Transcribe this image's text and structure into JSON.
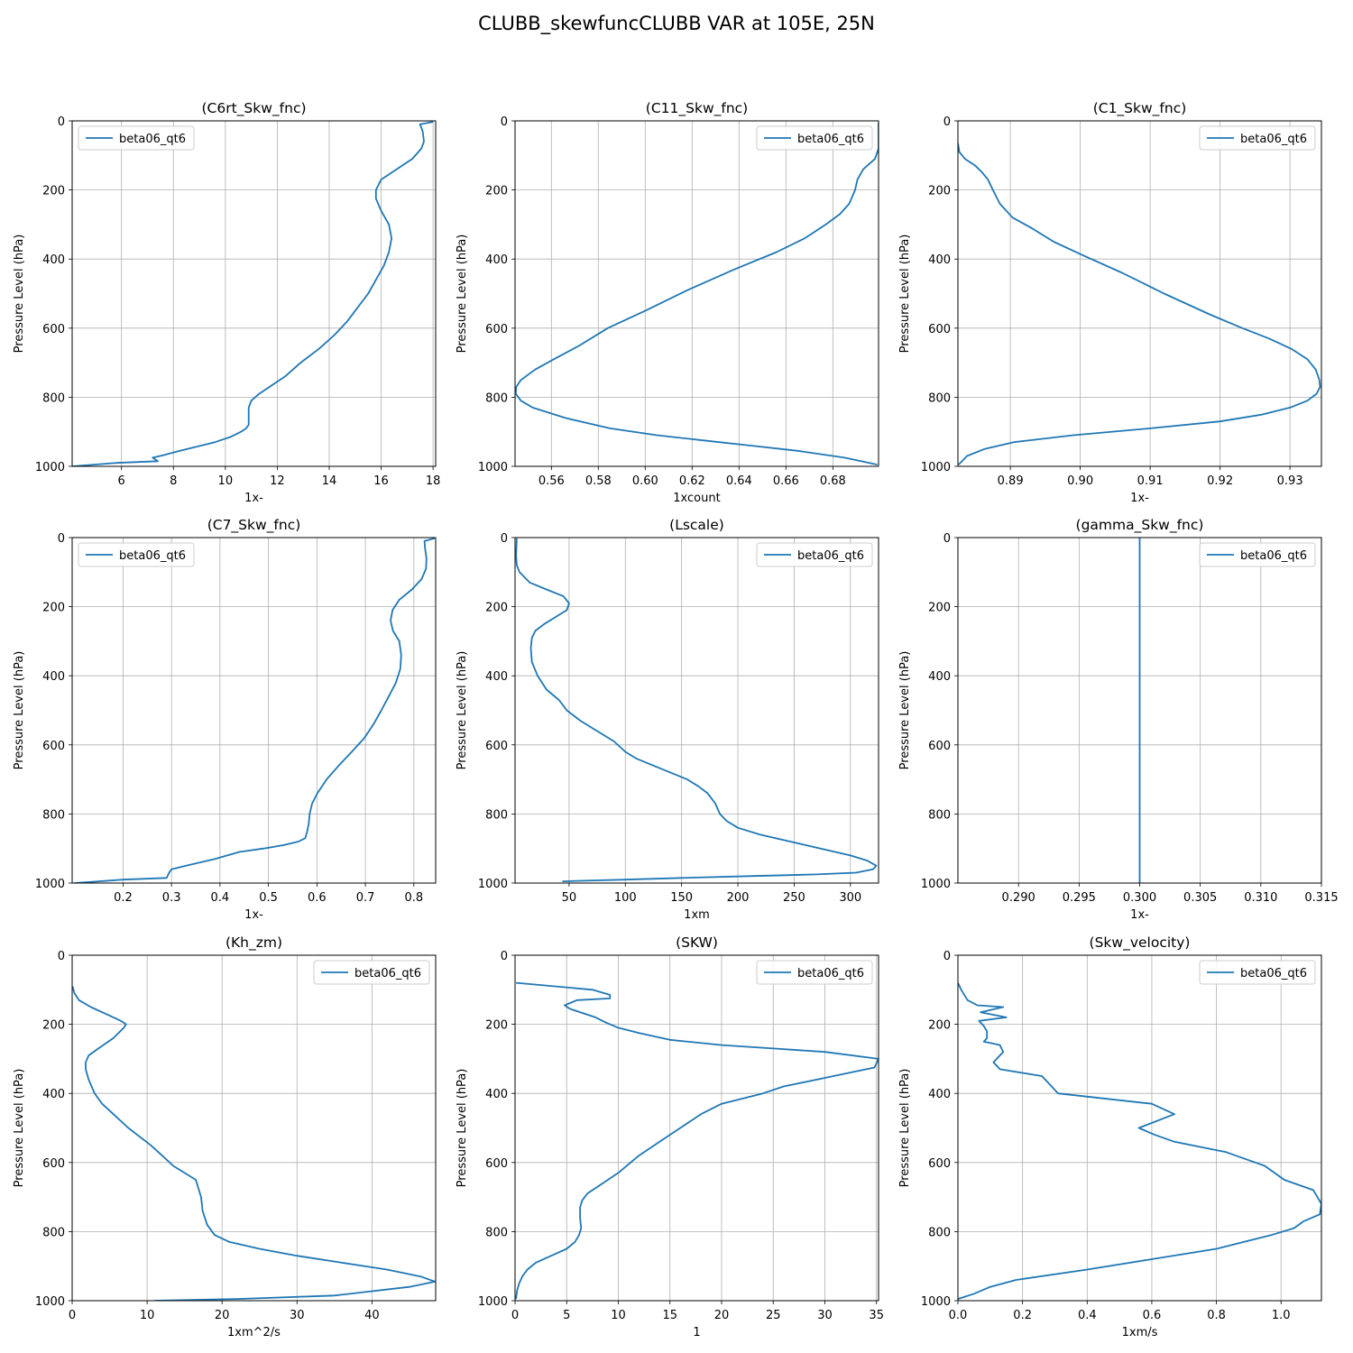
{
  "figure_title": "CLUBB_skewfuncCLUBB VAR at 105E, 25N",
  "colors": {
    "line": "#1f77b4",
    "grid": "#b0b0b0",
    "axis": "#000000"
  },
  "chart_data": [
    {
      "type": "line",
      "title": "(C6rt_Skw_fnc)",
      "xlabel": "1x-",
      "ylabel": "Pressure Level (hPa)",
      "xlim": [
        4.1,
        18.1
      ],
      "xticks": [
        6,
        8,
        10,
        12,
        14,
        16,
        18
      ],
      "ylim": [
        1000,
        0
      ],
      "yticks": [
        0,
        200,
        400,
        600,
        800,
        1000
      ],
      "grid": true,
      "legend_position": "upper left",
      "series": [
        {
          "name": "beta06_qt6",
          "x": [
            18.0,
            17.5,
            17.6,
            17.65,
            17.55,
            17.2,
            16.6,
            16.0,
            15.8,
            15.8,
            16.0,
            16.3,
            16.4,
            16.3,
            16.1,
            15.8,
            15.5,
            15.1,
            14.7,
            14.2,
            13.6,
            12.9,
            12.3,
            11.7,
            11.3,
            11.0,
            10.9,
            10.9,
            10.9,
            10.9,
            10.8,
            10.6,
            10.2,
            9.6,
            8.8,
            8.1,
            7.6,
            7.2,
            7.4,
            5.8,
            4.1
          ],
          "y": [
            3,
            10,
            30,
            60,
            80,
            110,
            140,
            170,
            200,
            225,
            260,
            300,
            340,
            380,
            420,
            460,
            500,
            540,
            580,
            620,
            660,
            700,
            740,
            770,
            790,
            810,
            830,
            850,
            870,
            880,
            890,
            900,
            915,
            930,
            945,
            958,
            968,
            975,
            985,
            990,
            1000
          ]
        }
      ]
    },
    {
      "type": "line",
      "title": "(C11_Skw_fnc)",
      "xlabel": "1xcount",
      "ylabel": "Pressure Level (hPa)",
      "xlim": [
        0.5445,
        0.6995
      ],
      "xticks": [
        0.56,
        0.58,
        0.6,
        0.62,
        0.64,
        0.66,
        0.68
      ],
      "ylim": [
        1000,
        0
      ],
      "yticks": [
        0,
        200,
        400,
        600,
        800,
        1000
      ],
      "grid": true,
      "legend_position": "upper right",
      "series": [
        {
          "name": "beta06_qt6",
          "x": [
            0.6995,
            0.6995,
            0.698,
            0.693,
            0.6905,
            0.6895,
            0.687,
            0.683,
            0.677,
            0.668,
            0.656,
            0.638,
            0.618,
            0.6,
            0.584,
            0.572,
            0.561,
            0.553,
            0.547,
            0.545,
            0.5448,
            0.547,
            0.552,
            0.566,
            0.585,
            0.605,
            0.625,
            0.645,
            0.665,
            0.685,
            0.699
          ],
          "y": [
            5,
            80,
            110,
            140,
            170,
            200,
            240,
            270,
            300,
            340,
            380,
            430,
            490,
            550,
            600,
            650,
            690,
            720,
            750,
            770,
            790,
            810,
            830,
            860,
            890,
            910,
            925,
            940,
            955,
            975,
            995
          ]
        }
      ]
    },
    {
      "type": "line",
      "title": "(C1_Skw_fnc)",
      "xlabel": "1x-",
      "ylabel": "Pressure Level (hPa)",
      "xlim": [
        0.8825,
        0.9345
      ],
      "xticks": [
        0.89,
        0.9,
        0.91,
        0.92,
        0.93
      ],
      "ylim": [
        1000,
        0
      ],
      "yticks": [
        0,
        200,
        400,
        600,
        800,
        1000
      ],
      "grid": true,
      "legend_position": "upper right",
      "series": [
        {
          "name": "beta06_qt6",
          "x": [
            0.8825,
            0.8827,
            0.8835,
            0.885,
            0.886,
            0.8868,
            0.8875,
            0.8885,
            0.8903,
            0.893,
            0.8962,
            0.9005,
            0.906,
            0.912,
            0.9185,
            0.9232,
            0.927,
            0.9302,
            0.9325,
            0.9337,
            0.9342,
            0.9343,
            0.9338,
            0.9325,
            0.93,
            0.926,
            0.92,
            0.91,
            0.899,
            0.8905,
            0.8863,
            0.8838,
            0.8826
          ],
          "y": [
            65,
            90,
            110,
            130,
            150,
            170,
            200,
            240,
            280,
            310,
            350,
            390,
            440,
            500,
            560,
            600,
            630,
            660,
            690,
            720,
            750,
            770,
            790,
            810,
            830,
            850,
            870,
            890,
            910,
            930,
            950,
            970,
            995
          ]
        }
      ]
    },
    {
      "type": "line",
      "title": "(C7_Skw_fnc)",
      "xlabel": "1x-",
      "ylabel": "Pressure Level (hPa)",
      "xlim": [
        0.095,
        0.845
      ],
      "xticks": [
        0.2,
        0.3,
        0.4,
        0.5,
        0.6,
        0.7,
        0.8
      ],
      "ylim": [
        1000,
        0
      ],
      "yticks": [
        0,
        200,
        400,
        600,
        800,
        1000
      ],
      "grid": true,
      "legend_position": "upper left",
      "series": [
        {
          "name": "beta06_qt6",
          "x": [
            0.843,
            0.822,
            0.823,
            0.826,
            0.825,
            0.816,
            0.796,
            0.77,
            0.756,
            0.752,
            0.757,
            0.77,
            0.774,
            0.772,
            0.763,
            0.748,
            0.733,
            0.717,
            0.698,
            0.672,
            0.645,
            0.62,
            0.601,
            0.59,
            0.585,
            0.583,
            0.58,
            0.576,
            0.562,
            0.532,
            0.49,
            0.44,
            0.39,
            0.33,
            0.3,
            0.295,
            0.29,
            0.2,
            0.1
          ],
          "y": [
            2,
            10,
            30,
            60,
            90,
            120,
            150,
            180,
            210,
            240,
            270,
            300,
            340,
            380,
            420,
            460,
            500,
            540,
            580,
            620,
            660,
            700,
            740,
            770,
            800,
            830,
            850,
            870,
            880,
            890,
            900,
            910,
            930,
            950,
            960,
            970,
            985,
            990,
            1000
          ]
        }
      ]
    },
    {
      "type": "line",
      "title": "(Lscale)",
      "xlabel": "1xm",
      "ylabel": "Pressure Level (hPa)",
      "xlim": [
        2,
        325
      ],
      "xticks": [
        50,
        100,
        150,
        200,
        250,
        300
      ],
      "ylim": [
        1000,
        0
      ],
      "yticks": [
        0,
        200,
        400,
        600,
        800,
        1000
      ],
      "grid": true,
      "legend_position": "upper right",
      "series": [
        {
          "name": "beta06_qt6",
          "x": [
            3.5,
            3.0,
            3.5,
            6,
            15,
            30,
            45,
            50,
            48,
            38,
            28,
            20,
            17,
            16,
            17,
            22,
            30,
            41,
            48,
            60,
            75,
            90,
            100,
            110,
            125,
            140,
            155,
            165,
            173,
            180,
            184,
            190,
            200,
            220,
            260,
            300,
            315,
            323,
            320,
            305,
            270,
            210,
            150,
            100,
            44
          ],
          "y": [
            2,
            50,
            80,
            100,
            130,
            150,
            170,
            190,
            210,
            230,
            250,
            270,
            290,
            320,
            360,
            400,
            440,
            470,
            500,
            530,
            560,
            590,
            620,
            640,
            660,
            680,
            700,
            720,
            740,
            770,
            800,
            820,
            840,
            860,
            890,
            920,
            935,
            950,
            960,
            970,
            975,
            980,
            985,
            990,
            995
          ]
        }
      ]
    },
    {
      "type": "line",
      "title": "(gamma_Skw_fnc)",
      "xlabel": "1x-",
      "ylabel": "Pressure Level (hPa)",
      "xlim": [
        0.285,
        0.315
      ],
      "xticks": [
        0.29,
        0.295,
        0.3,
        0.305,
        0.31,
        0.315
      ],
      "ylim": [
        1000,
        0
      ],
      "yticks": [
        0,
        200,
        400,
        600,
        800,
        1000
      ],
      "grid": true,
      "legend_position": "upper right",
      "series": [
        {
          "name": "beta06_qt6",
          "x": [
            0.3,
            0.3
          ],
          "y": [
            0,
            1000
          ]
        }
      ]
    },
    {
      "type": "line",
      "title": "(Kh_zm)",
      "xlabel": "1xm^2/s",
      "ylabel": "Pressure Level (hPa)",
      "xlim": [
        0,
        48.5
      ],
      "xticks": [
        0,
        10,
        20,
        30,
        40
      ],
      "ylim": [
        1000,
        0
      ],
      "yticks": [
        0,
        200,
        400,
        600,
        800,
        1000
      ],
      "grid": true,
      "legend_position": "upper right",
      "series": [
        {
          "name": "beta06_qt6",
          "x": [
            0.05,
            0.3,
            0.9,
            2.5,
            4.5,
            6.5,
            7.2,
            6.9,
            5.5,
            3.5,
            2.2,
            1.8,
            1.8,
            2.2,
            3.0,
            4.0,
            5.5,
            7.5,
            10.5,
            12,
            13.5,
            16.5,
            17.2,
            17.3,
            17.4,
            18.0,
            19.0,
            21.0,
            25,
            30,
            36,
            42,
            46.5,
            48.4,
            45,
            35,
            22,
            11
          ],
          "y": [
            90,
            110,
            130,
            150,
            170,
            190,
            200,
            210,
            240,
            270,
            290,
            310,
            330,
            360,
            400,
            430,
            460,
            500,
            550,
            580,
            610,
            650,
            700,
            720,
            740,
            780,
            810,
            830,
            850,
            870,
            890,
            910,
            930,
            945,
            960,
            985,
            995,
            1000
          ]
        }
      ]
    },
    {
      "type": "line",
      "title": "(SKW)",
      "xlabel": "1",
      "ylabel": "Pressure Level (hPa)",
      "xlim": [
        0,
        35.2
      ],
      "xticks": [
        0,
        5,
        10,
        15,
        20,
        25,
        30,
        35
      ],
      "ylim": [
        1000,
        0
      ],
      "yticks": [
        0,
        200,
        400,
        600,
        800,
        1000
      ],
      "grid": true,
      "legend_position": "upper right",
      "series": [
        {
          "name": "beta06_qt6",
          "x": [
            0.1,
            7.5,
            9.2,
            9.2,
            6.0,
            4.8,
            5.3,
            7.8,
            8.8,
            10.0,
            12.0,
            15.0,
            20.0,
            25.0,
            30.0,
            35.2,
            34.8,
            30.0,
            26.0,
            24.0,
            20.0,
            18.0,
            16.0,
            14.0,
            12.0,
            10.0,
            8.0,
            7.0,
            6.5,
            6.3,
            6.3,
            6.4,
            6.2,
            5.8,
            5.0,
            3.5,
            2.0,
            1.2,
            0.7,
            0.4,
            0.2,
            0.1
          ],
          "y": [
            80,
            100,
            115,
            125,
            130,
            145,
            155,
            180,
            195,
            210,
            225,
            245,
            260,
            270,
            280,
            300,
            325,
            355,
            380,
            400,
            430,
            460,
            500,
            540,
            580,
            630,
            670,
            690,
            710,
            730,
            760,
            790,
            810,
            830,
            850,
            870,
            890,
            910,
            930,
            950,
            970,
            995
          ]
        }
      ]
    },
    {
      "type": "line",
      "title": "(Skw_velocity)",
      "xlabel": "1xm/s",
      "ylabel": "Pressure Level (hPa)",
      "xlim": [
        0,
        1.125
      ],
      "xticks": [
        0,
        0.2,
        0.4,
        0.6,
        0.8,
        1.0
      ],
      "ylim": [
        1000,
        0
      ],
      "yticks": [
        0,
        200,
        400,
        600,
        800,
        1000
      ],
      "grid": true,
      "legend_position": "upper right",
      "series": [
        {
          "name": "beta06_qt6",
          "x": [
            0.0,
            0.01,
            0.03,
            0.06,
            0.14,
            0.07,
            0.15,
            0.065,
            0.08,
            0.09,
            0.09,
            0.08,
            0.13,
            0.14,
            0.11,
            0.13,
            0.26,
            0.29,
            0.31,
            0.6,
            0.67,
            0.56,
            0.61,
            0.67,
            0.83,
            0.95,
            1.01,
            1.1,
            1.125,
            1.12,
            1.07,
            1.04,
            0.97,
            0.8,
            0.6,
            0.4,
            0.18,
            0.1,
            0.05,
            0.0
          ],
          "y": [
            80,
            100,
            130,
            145,
            150,
            165,
            180,
            190,
            205,
            220,
            240,
            250,
            260,
            280,
            310,
            330,
            350,
            380,
            400,
            430,
            460,
            500,
            520,
            540,
            570,
            610,
            650,
            680,
            720,
            750,
            770,
            790,
            810,
            850,
            880,
            910,
            940,
            960,
            980,
            995
          ]
        }
      ]
    }
  ]
}
